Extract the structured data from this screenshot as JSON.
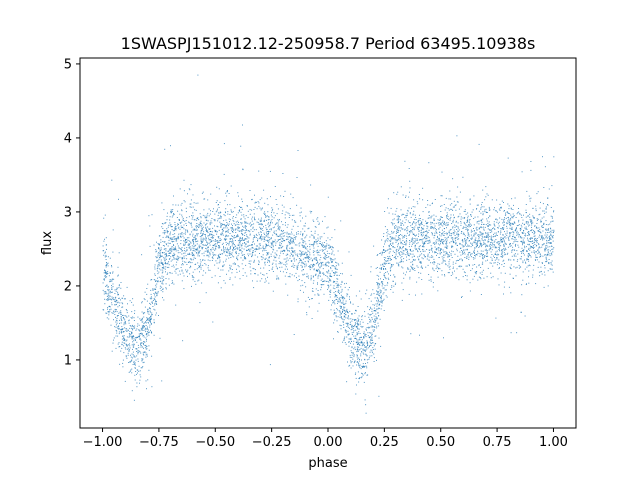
{
  "chart_data": {
    "type": "scatter",
    "title": "1SWASPJ151012.12-250958.7 Period 63495.10938s",
    "xlabel": "phase",
    "ylabel": "flux",
    "xlim": [
      -1.1,
      1.1
    ],
    "ylim": [
      0.08,
      5.08
    ],
    "x_ticks": [
      -1.0,
      -0.75,
      -0.5,
      -0.25,
      0.0,
      0.25,
      0.5,
      0.75,
      1.0
    ],
    "x_tick_labels": [
      "−1.00",
      "−0.75",
      "−0.50",
      "−0.25",
      "0.00",
      "0.25",
      "0.50",
      "0.75",
      "1.00"
    ],
    "y_ticks": [
      1,
      2,
      3,
      4,
      5
    ],
    "y_tick_labels": [
      "1",
      "2",
      "3",
      "4",
      "5"
    ],
    "grid": false,
    "marker_color": "#1f77b4",
    "baseline_flux": 2.65,
    "series": [
      {
        "name": "",
        "description_points": [
          {
            "phase": -1.0,
            "flux": 2.25
          },
          {
            "phase": -0.95,
            "flux": 1.75
          },
          {
            "phase": -0.9,
            "flux": 1.4
          },
          {
            "phase": -0.85,
            "flux": 1.15
          },
          {
            "phase": -0.8,
            "flux": 1.45
          },
          {
            "phase": -0.75,
            "flux": 2.3
          },
          {
            "phase": -0.7,
            "flux": 2.6
          },
          {
            "phase": -0.5,
            "flux": 2.65
          },
          {
            "phase": -0.25,
            "flux": 2.65
          },
          {
            "phase": 0.0,
            "flux": 2.3
          },
          {
            "phase": 0.05,
            "flux": 1.85
          },
          {
            "phase": 0.1,
            "flux": 1.4
          },
          {
            "phase": 0.15,
            "flux": 1.15
          },
          {
            "phase": 0.2,
            "flux": 1.45
          },
          {
            "phase": 0.25,
            "flux": 2.3
          },
          {
            "phase": 0.3,
            "flux": 2.6
          },
          {
            "phase": 0.5,
            "flux": 2.65
          },
          {
            "phase": 0.75,
            "flux": 2.65
          },
          {
            "phase": 1.0,
            "flux": 2.65
          }
        ]
      }
    ]
  }
}
